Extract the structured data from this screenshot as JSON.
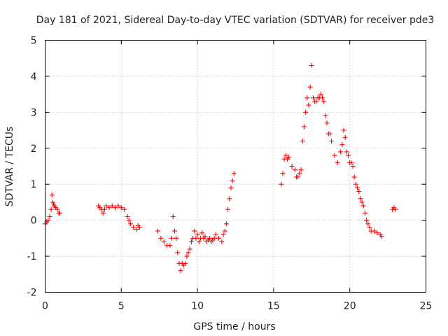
{
  "chart_data": {
    "type": "scatter",
    "title": "Day 181 of 2021, Sidereal Day-to-day VTEC variation (SDTVAR) for receiver pde3",
    "xlabel": "GPS time / hours",
    "ylabel": "SDTVAR / TECUs",
    "xlim": [
      0,
      25
    ],
    "ylim": [
      -2,
      5
    ],
    "xticks": [
      "0",
      "5",
      "10",
      "15",
      "20",
      "25"
    ],
    "yticks": [
      "-2",
      "-1",
      "0",
      "1",
      "2",
      "3",
      "4",
      "5"
    ],
    "grid": true,
    "marker": "plus",
    "colors": {
      "points": "#ff0000",
      "grid": "#a0a0a0",
      "axes": "#000000"
    },
    "series": [
      {
        "name": "pde3",
        "x": [
          0.0,
          0.1,
          0.2,
          0.3,
          0.4,
          0.45,
          0.5,
          0.55,
          0.6,
          0.7,
          0.8,
          0.9,
          0.95,
          3.5,
          3.6,
          3.7,
          3.8,
          3.9,
          4.0,
          4.2,
          4.4,
          4.6,
          4.8,
          5.0,
          5.2,
          5.4,
          5.5,
          5.6,
          5.8,
          6.0,
          6.1,
          6.2,
          7.4,
          7.6,
          7.8,
          8.0,
          8.2,
          8.3,
          8.4,
          8.5,
          8.6,
          8.7,
          8.8,
          8.9,
          9.0,
          9.1,
          9.2,
          9.3,
          9.4,
          9.5,
          9.6,
          9.7,
          9.8,
          9.9,
          10.0,
          10.1,
          10.2,
          10.3,
          10.4,
          10.5,
          10.6,
          10.7,
          10.8,
          10.9,
          11.0,
          11.1,
          11.2,
          11.4,
          11.6,
          11.7,
          11.8,
          11.9,
          12.0,
          12.1,
          12.2,
          12.3,
          12.4,
          15.5,
          15.6,
          15.7,
          15.8,
          15.9,
          16.0,
          16.2,
          16.4,
          16.5,
          16.6,
          16.7,
          16.8,
          16.9,
          17.0,
          17.1,
          17.2,
          17.3,
          17.4,
          17.5,
          17.6,
          17.7,
          17.8,
          17.9,
          18.0,
          18.1,
          18.2,
          18.3,
          18.4,
          18.5,
          18.6,
          18.7,
          18.8,
          19.0,
          19.2,
          19.4,
          19.5,
          19.6,
          19.7,
          19.8,
          19.9,
          20.0,
          20.1,
          20.2,
          20.3,
          20.4,
          20.5,
          20.6,
          20.7,
          20.8,
          20.9,
          21.0,
          21.1,
          21.2,
          21.3,
          21.4,
          21.6,
          21.8,
          22.0,
          22.1,
          22.8,
          22.9,
          23.0
        ],
        "y": [
          -0.1,
          -0.05,
          0.0,
          0.1,
          0.3,
          0.7,
          0.5,
          0.45,
          0.4,
          0.35,
          0.3,
          0.2,
          0.2,
          0.4,
          0.35,
          0.3,
          0.2,
          0.3,
          0.4,
          0.35,
          0.4,
          0.35,
          0.4,
          0.35,
          0.3,
          0.1,
          0.0,
          -0.1,
          -0.2,
          -0.25,
          -0.15,
          -0.2,
          -0.3,
          -0.5,
          -0.6,
          -0.7,
          -0.7,
          -0.5,
          0.1,
          -0.3,
          -0.5,
          -0.9,
          -1.2,
          -1.4,
          -1.2,
          -1.25,
          -1.2,
          -1.0,
          -0.9,
          -0.8,
          -0.6,
          -0.5,
          -0.3,
          -0.5,
          -0.4,
          -0.6,
          -0.5,
          -0.35,
          -0.5,
          -0.45,
          -0.6,
          -0.55,
          -0.5,
          -0.6,
          -0.55,
          -0.5,
          -0.4,
          -0.5,
          -0.6,
          -0.4,
          -0.3,
          -0.1,
          0.3,
          0.6,
          0.9,
          1.1,
          1.3,
          1.0,
          1.3,
          1.7,
          1.8,
          1.7,
          1.75,
          1.5,
          1.4,
          1.2,
          1.2,
          1.3,
          1.4,
          2.2,
          2.6,
          3.0,
          3.4,
          3.2,
          3.7,
          4.3,
          3.4,
          3.3,
          3.3,
          3.4,
          3.4,
          3.5,
          3.4,
          3.3,
          2.9,
          2.7,
          2.4,
          2.4,
          2.2,
          1.8,
          1.6,
          1.9,
          2.1,
          2.5,
          2.3,
          1.9,
          1.8,
          1.6,
          1.6,
          1.5,
          1.2,
          1.0,
          0.9,
          0.8,
          0.6,
          0.5,
          0.4,
          0.2,
          0.0,
          -0.1,
          -0.2,
          -0.3,
          -0.3,
          -0.35,
          -0.4,
          -0.45,
          0.3,
          0.35,
          0.3
        ]
      }
    ]
  }
}
